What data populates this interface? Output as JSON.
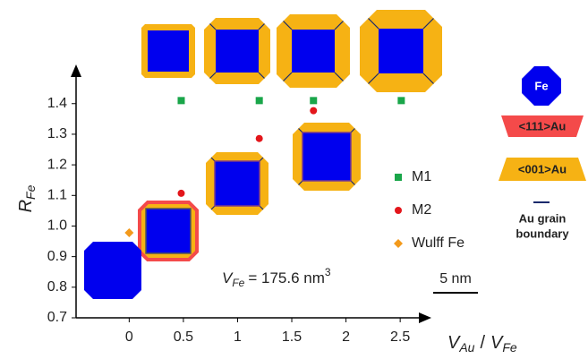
{
  "chart_data": {
    "type": "scatter",
    "y_label": [
      "R",
      "Fe"
    ],
    "x_label": [
      "V",
      "Au",
      "/",
      "V",
      "Fe"
    ],
    "annotation": [
      "V",
      "Fe",
      "= 175.6 nm",
      "3"
    ],
    "scale_bar": "5 nm",
    "shape_legend": [
      "Fe",
      "<111>Au",
      "<001>Au",
      "Au grain",
      "boundary"
    ],
    "xlim": [
      -0.49,
      2.73
    ],
    "ylim": [
      0.7,
      1.49
    ],
    "xticks": [
      0,
      0.5,
      1,
      1.5,
      2,
      2.5
    ],
    "yticks": [
      0.7,
      0.8,
      0.9,
      {
        "value": 1,
        "label": "1.0"
      },
      1.1,
      1.2,
      1.3,
      1.4
    ],
    "series": [
      {
        "name": "M1",
        "color": "#1aa64a",
        "marker": "square",
        "x": [
          0.48,
          1.2,
          1.7,
          2.51
        ],
        "values": [
          1.41,
          1.41,
          1.41,
          1.41
        ]
      },
      {
        "name": "M2",
        "color": "#e3161b",
        "marker": "circle",
        "x": [
          0.48,
          1.2,
          1.7
        ],
        "values": [
          1.107,
          1.286,
          1.377
        ]
      },
      {
        "name": "Wulff Fe",
        "color": "#f39a1c",
        "marker": "diamond",
        "x": [
          0
        ],
        "values": [
          0.978
        ]
      }
    ]
  }
}
